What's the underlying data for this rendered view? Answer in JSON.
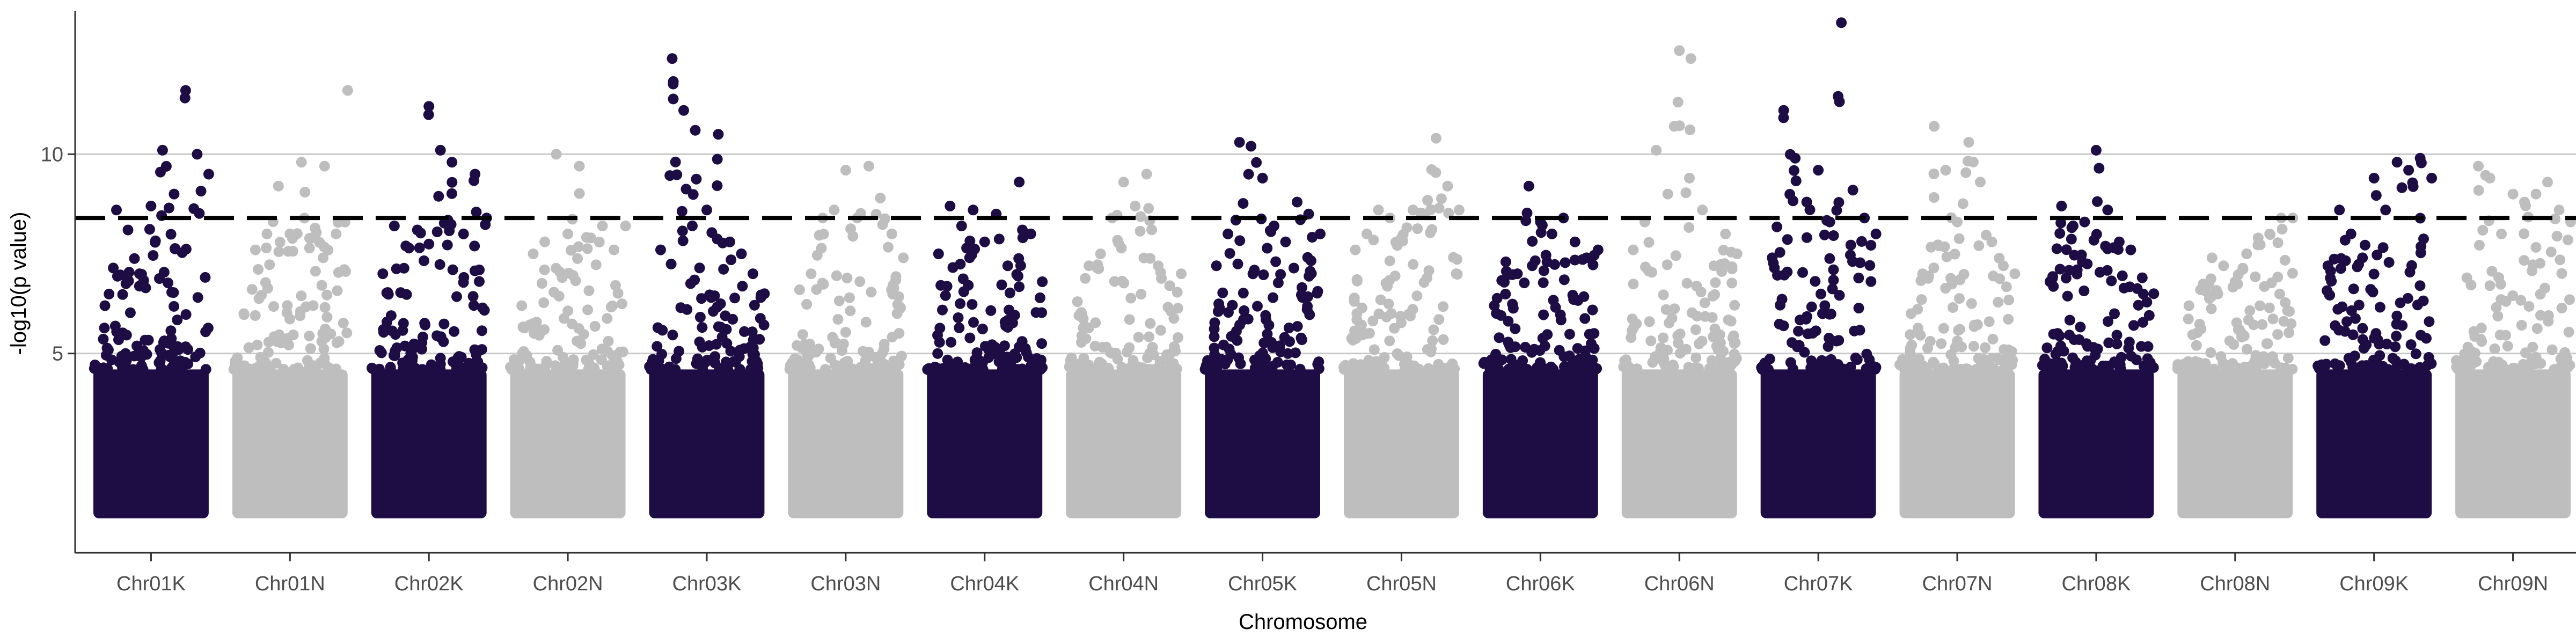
{
  "chart_data": {
    "type": "scatter",
    "title": "",
    "xlabel": "Chromosome",
    "ylabel": "-log10(p value)",
    "ylim": [
      0,
      13.6
    ],
    "yticks": [
      5,
      10
    ],
    "threshold": 8.4,
    "grid": "horizontal major lines only",
    "legend": "none",
    "colors": {
      "odd": "#1e0d45",
      "even": "#bebebe",
      "threshold_line": "#000000",
      "grid": "#c8c8c8",
      "axis": "#333333"
    },
    "categories": [
      "Chr01K",
      "Chr01N",
      "Chr02K",
      "Chr02N",
      "Chr03K",
      "Chr03N",
      "Chr04K",
      "Chr04N",
      "Chr05K",
      "Chr05N",
      "Chr06K",
      "Chr06N",
      "Chr07K",
      "Chr07N",
      "Chr08K",
      "Chr08N",
      "Chr09K",
      "Chr09N"
    ],
    "series": [
      {
        "values": [
          1,
          6.2,
          8.6,
          8.1,
          7.0,
          8.7,
          10.1,
          9.0,
          11.6,
          10.0,
          9.5
        ]
      },
      {
        "values": [
          1,
          6.0,
          7.6,
          8.0,
          9.2,
          8.0,
          9.8,
          7.9,
          9.7,
          8.0,
          11.6
        ]
      },
      {
        "values": [
          1,
          7.0,
          8.2,
          7.7,
          8.1,
          11.2,
          10.1,
          9.8,
          8.0,
          9.5,
          8.4
        ]
      },
      {
        "values": [
          1,
          6.2,
          7.5,
          7.8,
          10.0,
          8.0,
          9.7,
          7.9,
          8.2,
          7.6,
          8.2
        ]
      },
      {
        "values": [
          1,
          7.6,
          12.4,
          11.1,
          10.6,
          8.6,
          10.5,
          7.8,
          7.5,
          7.0,
          6.5
        ]
      },
      {
        "values": [
          1,
          6.6,
          7.0,
          8.4,
          8.6,
          9.6,
          8.4,
          9.7,
          8.9,
          8.0,
          7.4
        ]
      },
      {
        "values": [
          1,
          7.5,
          8.7,
          8.2,
          8.6,
          7.8,
          8.5,
          7.2,
          9.3,
          8.0,
          6.8
        ]
      },
      {
        "values": [
          1,
          6.3,
          7.2,
          7.5,
          8.4,
          9.3,
          8.7,
          9.5,
          7.2,
          6.7,
          7.0
        ]
      },
      {
        "values": [
          1,
          7.2,
          8.0,
          10.3,
          10.2,
          9.4,
          8.2,
          7.8,
          8.8,
          8.5,
          8.0
        ]
      },
      {
        "values": [
          1,
          7.6,
          8.0,
          8.6,
          8.4,
          7.9,
          8.6,
          8.5,
          10.4,
          9.2,
          8.6
        ]
      },
      {
        "values": [
          1,
          6.2,
          7.3,
          7.0,
          9.2,
          8.3,
          8.0,
          8.4,
          7.8,
          7.4,
          7.6
        ]
      },
      {
        "values": [
          1,
          7.6,
          8.3,
          10.1,
          9.0,
          12.6,
          12.4,
          8.6,
          7.2,
          8.0,
          7.5
        ]
      },
      {
        "values": [
          1,
          7.4,
          11.1,
          9.9,
          8.8,
          9.6,
          8.3,
          13.3,
          9.1,
          8.4,
          8.0
        ]
      },
      {
        "values": [
          1,
          6.0,
          7.0,
          10.7,
          9.6,
          8.3,
          10.3,
          9.3,
          7.8,
          7.2,
          7.0
        ]
      },
      {
        "values": [
          1,
          6.8,
          8.7,
          8.2,
          8.3,
          10.1,
          8.6,
          7.8,
          7.6,
          6.9,
          6.5
        ]
      },
      {
        "values": [
          1,
          6.2,
          6.6,
          7.4,
          7.2,
          6.8,
          7.5,
          7.9,
          8.0,
          8.4,
          8.4
        ]
      },
      {
        "values": [
          1,
          7.2,
          8.6,
          8.0,
          7.4,
          9.4,
          8.6,
          9.8,
          9.6,
          9.9,
          9.4
        ]
      },
      {
        "values": [
          1,
          6.9,
          9.7,
          9.4,
          8.0,
          9.0,
          8.8,
          9.0,
          9.3,
          8.6,
          8.3
        ]
      }
    ]
  }
}
